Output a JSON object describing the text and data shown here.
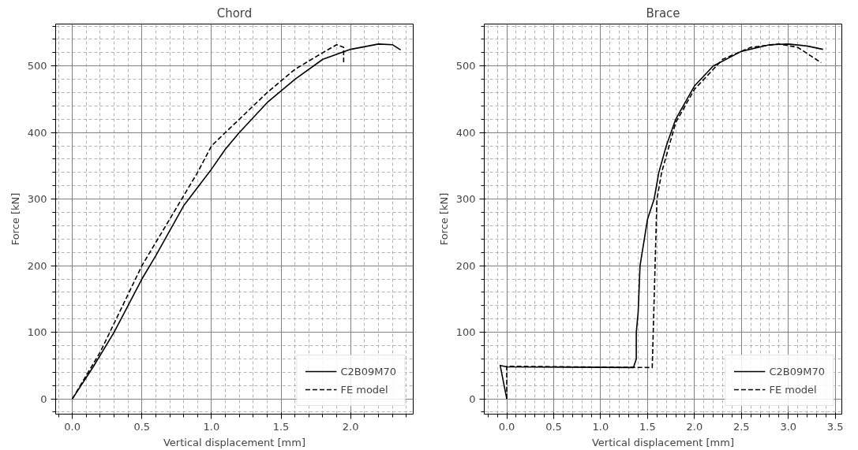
{
  "chart_data": [
    {
      "type": "line",
      "title": "Chord",
      "xlabel": "Vertical displacement [mm]",
      "ylabel": "Force [kN]",
      "xlim": [
        -0.12,
        2.45
      ],
      "ylim": [
        -23,
        563
      ],
      "xticks": [
        {
          "value": 0,
          "label": "0.0"
        },
        0.5,
        {
          "value": 1,
          "label": "1.0"
        },
        1.5,
        {
          "value": 2,
          "label": "2.0"
        }
      ],
      "yticks": [
        0,
        100,
        200,
        300,
        400,
        500
      ],
      "grid": true,
      "legend": "bottom right",
      "series": [
        {
          "name": "C2B09M70",
          "color": "#000000",
          "line_style": "solid",
          "x": [
            0,
            0.15,
            0.3,
            0.5,
            0.6,
            0.8,
            1.0,
            1.1,
            1.2,
            1.4,
            1.6,
            1.8,
            2.0,
            2.2,
            2.3,
            2.36
          ],
          "values": [
            0,
            48,
            100,
            180,
            215,
            290,
            345,
            375,
            400,
            445,
            480,
            510,
            525,
            533,
            532,
            524
          ]
        },
        {
          "name": "FE model",
          "color": "#000000",
          "line_style": "dashed",
          "x": [
            0,
            0.2,
            0.5,
            0.7,
            0.9,
            1.0,
            1.2,
            1.4,
            1.6,
            1.8,
            1.9,
            1.95,
            1.95
          ],
          "values": [
            0,
            70,
            200,
            270,
            340,
            380,
            420,
            460,
            495,
            520,
            532,
            528,
            505
          ]
        }
      ]
    },
    {
      "type": "line",
      "title": "Brace",
      "xlabel": "Vertical displacement [mm]",
      "ylabel": "Force [kN]",
      "xlim": [
        -0.24,
        3.57
      ],
      "ylim": [
        -23,
        563
      ],
      "xticks": [
        {
          "value": 0,
          "label": "0.0"
        },
        0.5,
        {
          "value": 1,
          "label": "1.0"
        },
        1.5,
        {
          "value": 2,
          "label": "2.0"
        },
        2.5,
        {
          "value": 3,
          "label": "3.0"
        },
        3.5
      ],
      "yticks": [
        0,
        100,
        200,
        300,
        400,
        500
      ],
      "grid": true,
      "legend": "bottom right",
      "series": [
        {
          "name": "C2B09M70",
          "color": "#000000",
          "line_style": "solid",
          "x": [
            0,
            -0.07,
            0,
            1.35,
            1.38,
            1.38,
            1.4,
            1.42,
            1.5,
            1.57,
            1.62,
            1.7,
            1.8,
            1.9,
            2.0,
            2.2,
            2.5,
            2.8,
            3.0,
            3.2,
            3.37
          ],
          "values": [
            0,
            50,
            48,
            47,
            60,
            100,
            130,
            200,
            270,
            300,
            340,
            380,
            420,
            445,
            470,
            500,
            522,
            532,
            533,
            530,
            525
          ]
        },
        {
          "name": "FE model",
          "color": "#000000",
          "line_style": "dashed",
          "x": [
            0,
            0,
            1.55,
            1.6,
            1.65,
            1.8,
            2.0,
            2.3,
            2.6,
            2.9,
            3.1,
            3.35
          ],
          "values": [
            0,
            49,
            47,
            300,
            340,
            415,
            465,
            510,
            528,
            533,
            528,
            505
          ]
        }
      ]
    }
  ]
}
